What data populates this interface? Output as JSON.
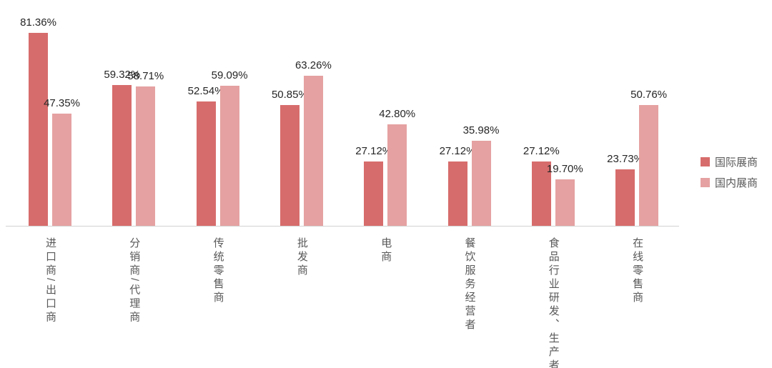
{
  "chart_data": {
    "type": "bar",
    "categories": [
      "进口商/出口商",
      "分销商/代理商",
      "传统零售商",
      "批发商",
      "电商",
      "餐饮服务经营者",
      "食品行业研发、生产者",
      "在线零售商"
    ],
    "series": [
      {
        "name": "国际展商",
        "color": "#d76c6c",
        "values": [
          81.36,
          59.32,
          52.54,
          50.85,
          27.12,
          27.12,
          27.12,
          23.73
        ],
        "labels": [
          "81.36%",
          "59.32%",
          "52.54%",
          "50.85%",
          "27.12%",
          "27.12%",
          "27.12%",
          "23.73%"
        ]
      },
      {
        "name": "国内展商",
        "color": "#e5a1a1",
        "values": [
          47.35,
          58.71,
          59.09,
          63.26,
          42.8,
          35.98,
          19.7,
          50.76
        ],
        "labels": [
          "47.35%",
          "58.71%",
          "59.09%",
          "63.26%",
          "42.80%",
          "35.98%",
          "19.70%",
          "50.76%"
        ]
      }
    ],
    "title": "",
    "xlabel": "",
    "ylabel": "",
    "ylim": [
      0,
      95
    ],
    "grid": false,
    "legend_position": "right",
    "axis_line_color": "#d2d2d2",
    "value_label_color": "#262626",
    "category_label_color": "#595959"
  }
}
